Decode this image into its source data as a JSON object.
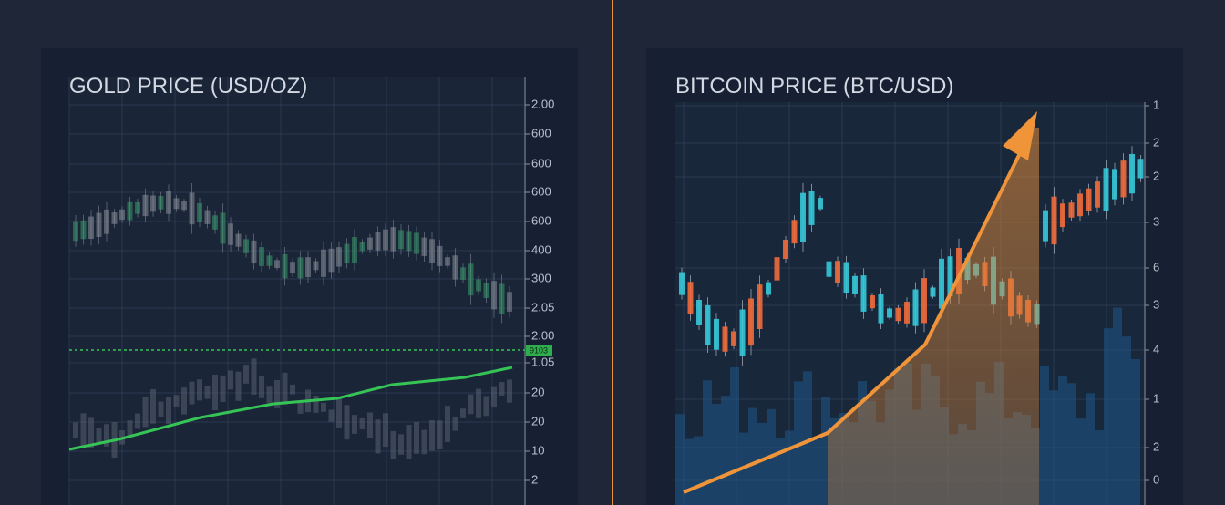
{
  "panels": [
    {
      "title": "GOLD PRICE (USD/OZ)",
      "axis_labels": [
        "2.00",
        "600",
        "600",
        "600",
        "600",
        "400",
        "300",
        "2.05",
        "2.00",
        "1.05",
        "20",
        "20",
        "10",
        "2"
      ],
      "marker_label": "9103"
    },
    {
      "title": "BITCOIN PRICE (BTC/USD)",
      "axis_labels": [
        "1",
        "2",
        "2",
        "3",
        "6",
        "3",
        "4",
        "1",
        "2",
        "0"
      ]
    }
  ]
}
